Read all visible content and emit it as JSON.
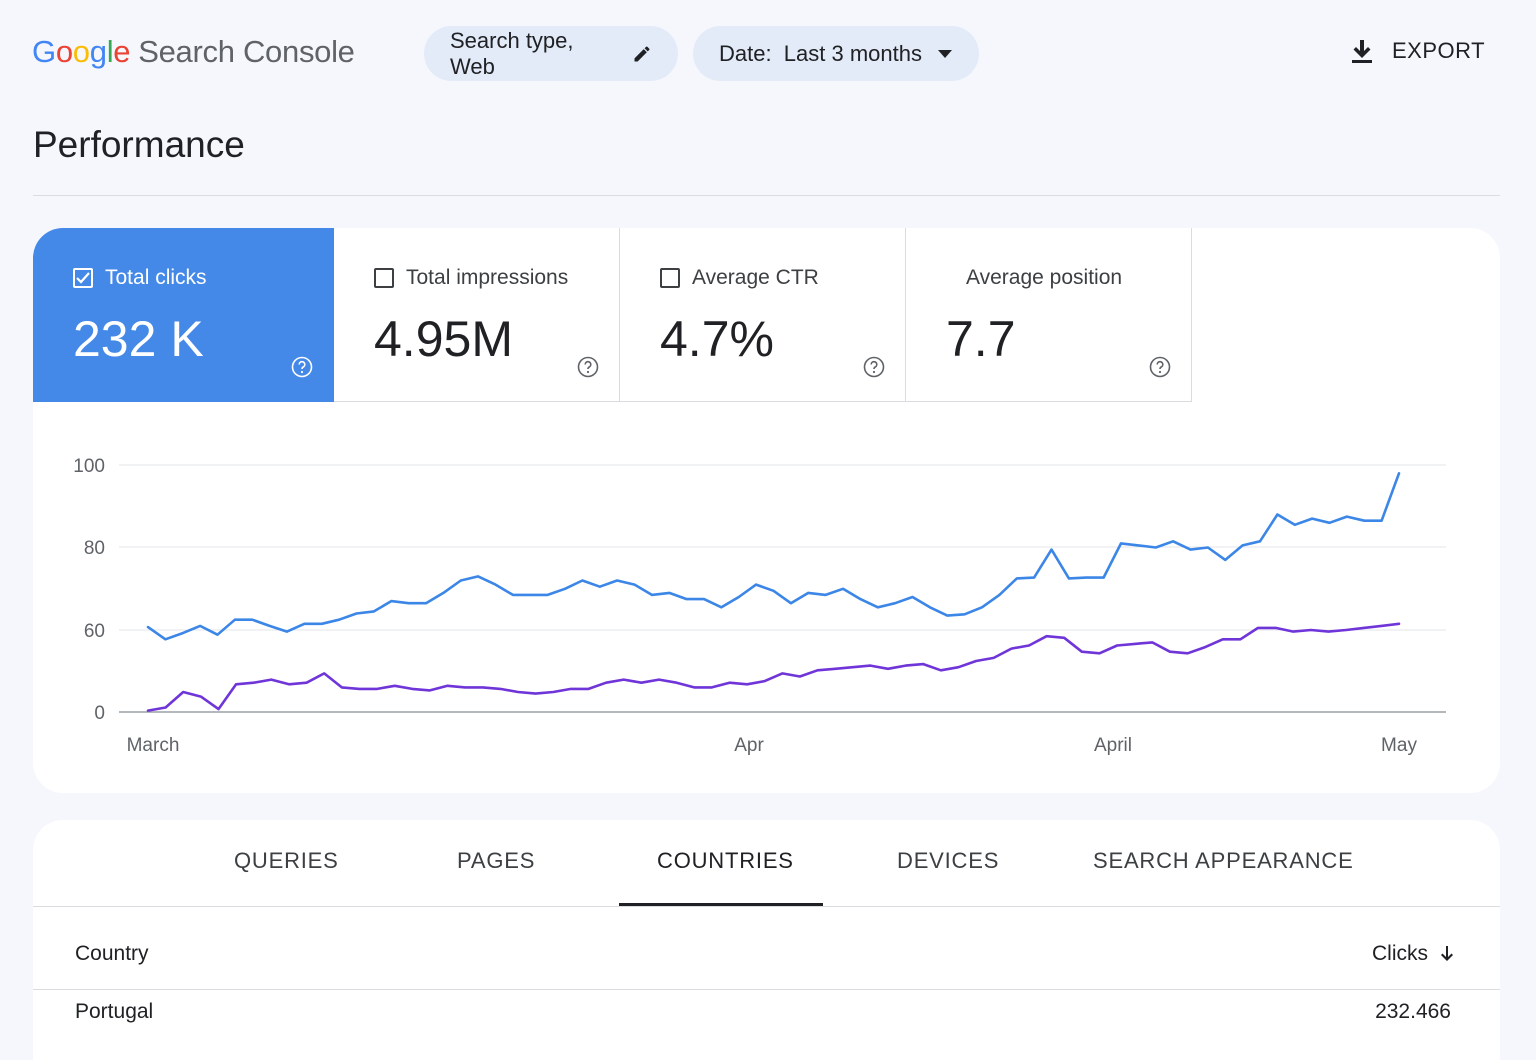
{
  "header": {
    "logo_brand": "Google",
    "logo_product": "Search Console",
    "search_type_label": "Search type, Web",
    "date_label": "Date:  Last 3 months",
    "export_label": "EXPORT"
  },
  "page_title": "Performance",
  "metrics": [
    {
      "label": "Total clicks",
      "value": "232 K",
      "checked": true
    },
    {
      "label": "Total impressions",
      "value": "4.95M",
      "checked": false
    },
    {
      "label": "Average CTR",
      "value": "4.7%",
      "checked": false
    },
    {
      "label": "Average position",
      "value": "7.7",
      "checked": false
    }
  ],
  "colors": {
    "accent_blue": "#4589e8",
    "clicks_line": "#3b86e6",
    "impressions_line": "#6f35d8"
  },
  "chart_data": {
    "type": "line",
    "y_ticks": [
      "100",
      "80",
      "60",
      "0"
    ],
    "x_ticks": [
      "March",
      "Apr",
      "April",
      "May"
    ],
    "grid": true,
    "series": [
      {
        "color": "#3b86e6",
        "values": [
          60.7,
          57,
          59,
          61,
          58.5,
          62.5,
          62.5,
          61,
          59.5,
          61.5,
          61.5,
          62.5,
          64,
          64.5,
          67,
          66.5,
          66.5,
          69,
          72,
          73,
          71,
          68.5,
          68.5,
          68.5,
          70,
          72,
          70.5,
          72,
          71,
          68.5,
          69,
          67.5,
          67.5,
          65.5,
          68,
          71,
          69.5,
          66.5,
          69,
          68.5,
          70,
          67.5,
          65.5,
          66.5,
          68,
          65.5,
          63.5,
          63.8,
          65.5,
          68.5,
          72.5,
          72.7,
          79.5,
          72.5,
          72.7,
          72.7,
          81,
          80.5,
          80,
          81.5,
          79.5,
          80,
          77,
          80.5,
          81.5,
          88,
          85.5,
          87,
          86,
          87.5,
          86.5,
          86.5,
          98
        ]
      },
      {
        "color": "#6f35d8",
        "values": [
          34,
          35,
          40,
          38.5,
          34.5,
          42.5,
          43,
          44,
          42.5,
          43,
          46,
          41.5,
          41,
          41,
          42,
          41,
          40.5,
          42,
          41.5,
          41.5,
          41,
          40,
          39.5,
          40,
          41,
          41,
          43,
          44,
          43,
          44,
          43,
          41.5,
          41.5,
          43,
          42.5,
          43.5,
          46,
          45,
          47,
          47.5,
          48,
          48.5,
          47.5,
          48.5,
          49,
          47,
          48,
          50,
          51,
          54,
          55,
          58,
          57.5,
          53,
          52.5,
          55,
          55.5,
          56,
          53,
          52.5,
          54.5,
          57,
          57,
          60.5,
          60.5,
          59.5,
          60,
          59.5,
          60,
          60.5,
          61,
          61.5
        ]
      }
    ]
  },
  "tabs": [
    "QUERIES",
    "PAGES",
    "COUNTRIES",
    "DEVICES",
    "SEARCH APPEARANCE"
  ],
  "active_tab": "COUNTRIES",
  "table": {
    "col_country": "Country",
    "col_clicks": "Clicks",
    "rows": [
      {
        "country": "Portugal",
        "clicks": "232.466"
      }
    ]
  }
}
